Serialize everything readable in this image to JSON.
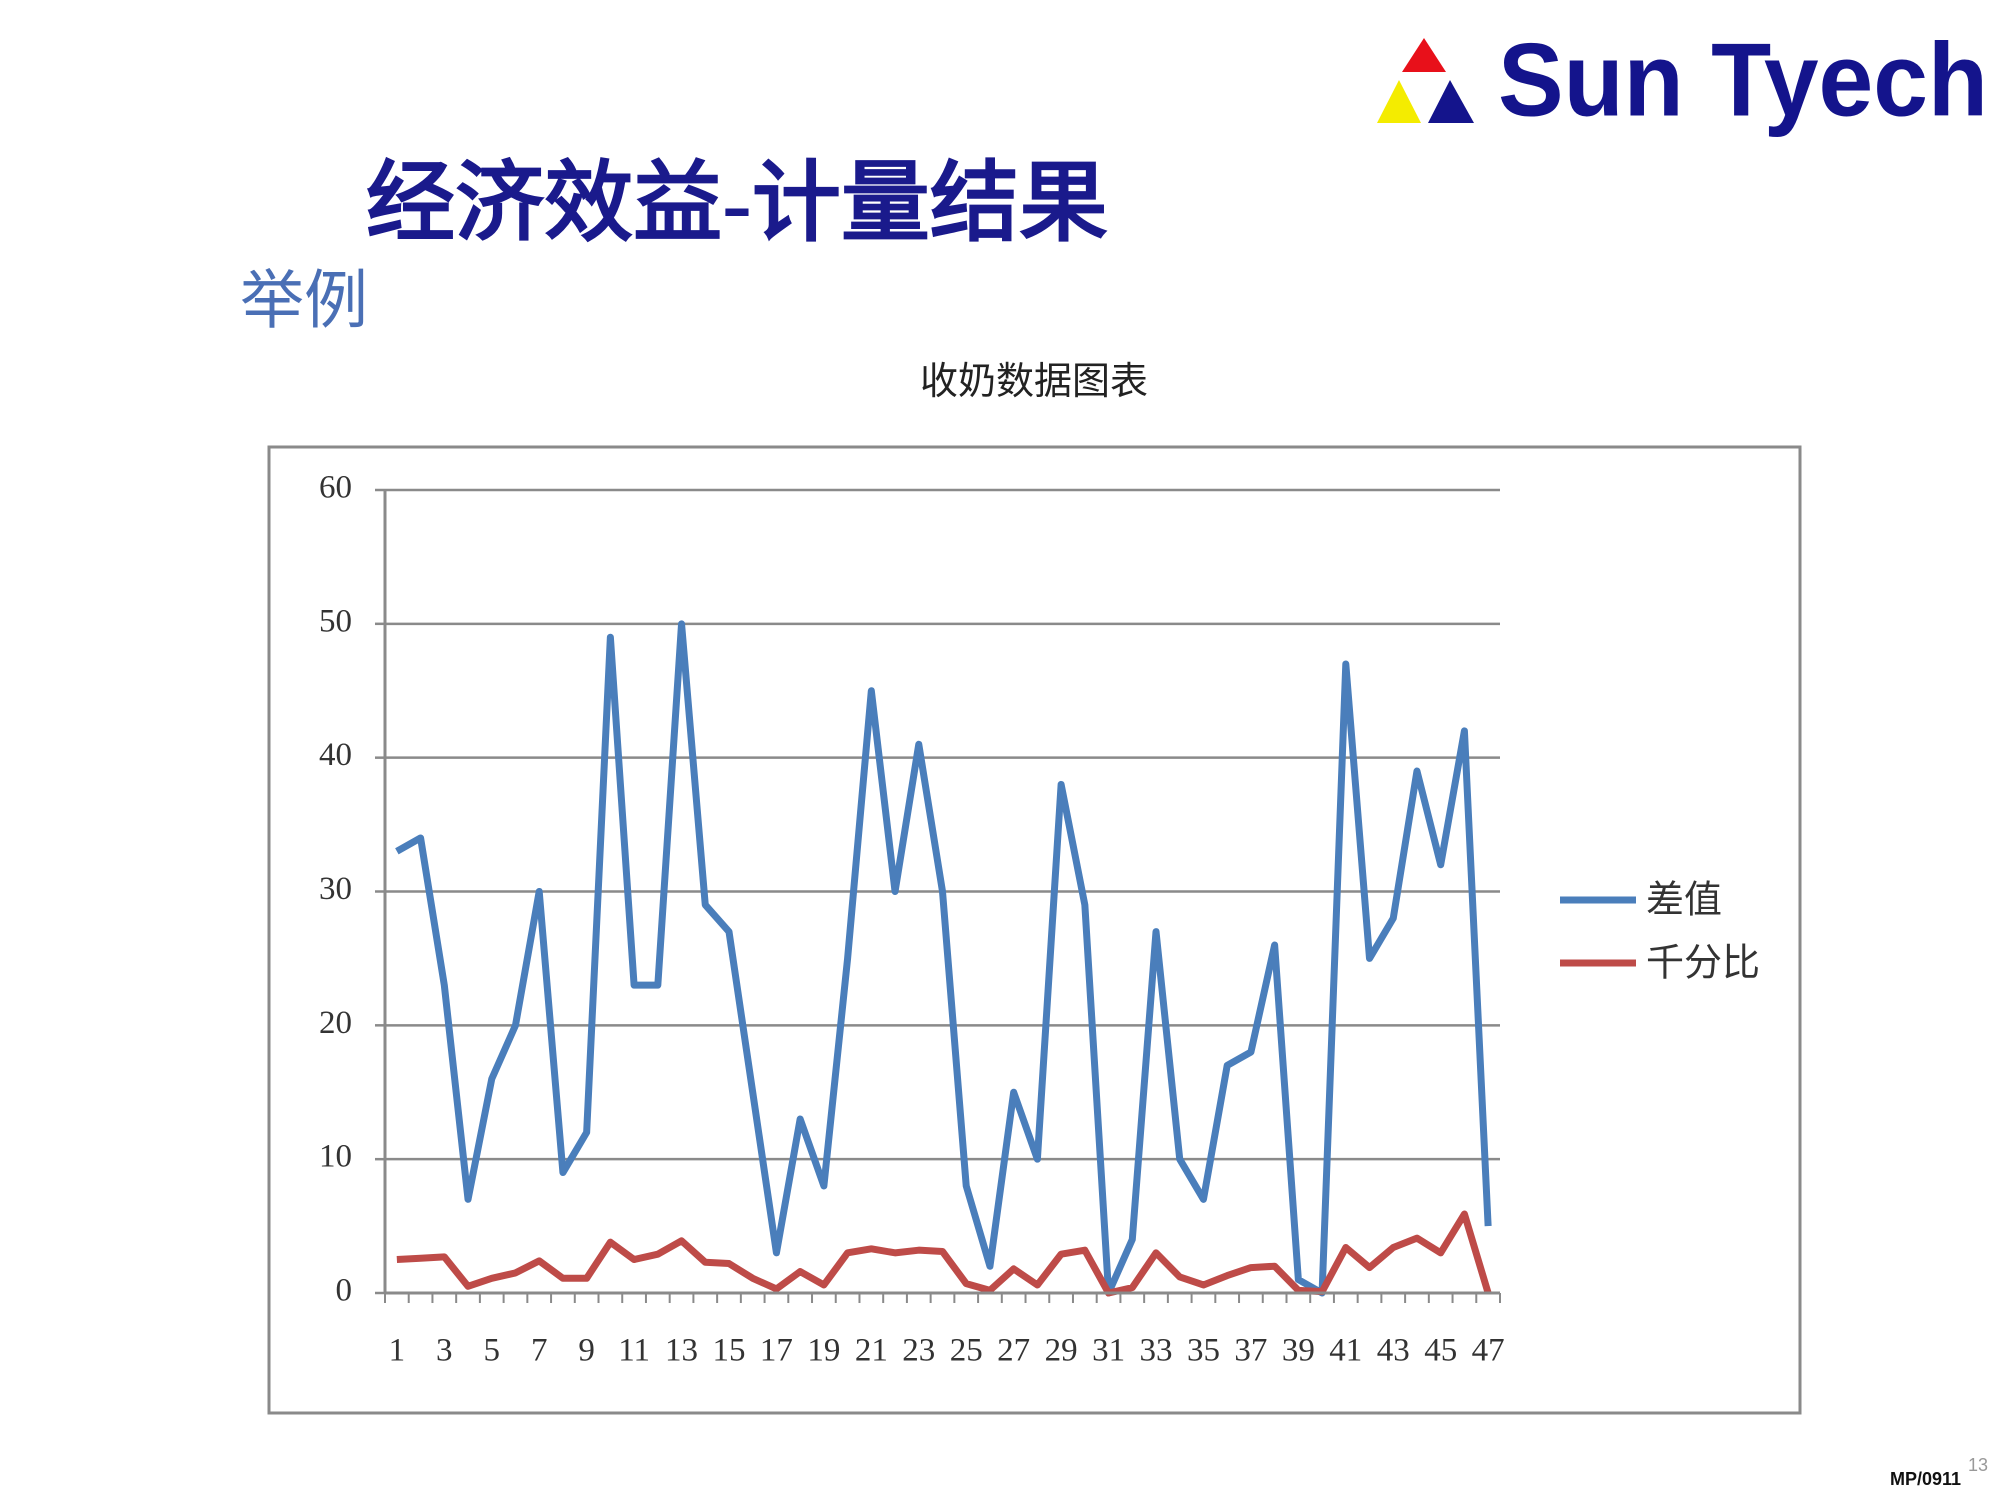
{
  "header": {
    "logo": "Sun Tyech",
    "title": "经济效益-计量结果",
    "subtitle": "举例"
  },
  "footer": {
    "code": "MP/0911",
    "page": "13"
  },
  "chart_data": {
    "type": "line",
    "title": "收奶数据图表",
    "categories": [
      "1",
      null,
      "3",
      null,
      "5",
      null,
      "7",
      null,
      "9",
      null,
      "11",
      null,
      "13",
      null,
      "15",
      null,
      "17",
      null,
      "19",
      null,
      "21",
      null,
      "23",
      null,
      "25",
      null,
      "27",
      null,
      "29",
      null,
      "31",
      null,
      "33",
      null,
      "35",
      null,
      "37",
      null,
      "39",
      null,
      "41",
      null,
      "43",
      null,
      "45",
      null,
      "47"
    ],
    "series": [
      {
        "name": "差值",
        "color": "#4a7ebb",
        "values": [
          33,
          34,
          23,
          7,
          16,
          20,
          30,
          9,
          12,
          49,
          23,
          23,
          50,
          29,
          27,
          15,
          3,
          13,
          8,
          25,
          45,
          30,
          41,
          30,
          8,
          2,
          15,
          10,
          38,
          29,
          0,
          4,
          27,
          10,
          7,
          17,
          18,
          26,
          1,
          0,
          47,
          25,
          28,
          39,
          32,
          42,
          5
        ]
      },
      {
        "name": "千分比",
        "color": "#be4b48",
        "values": [
          2.5,
          2.6,
          2.7,
          0.5,
          1.1,
          1.5,
          2.4,
          1.1,
          1.1,
          3.8,
          2.5,
          2.9,
          3.9,
          2.3,
          2.2,
          1.1,
          0.3,
          1.6,
          0.6,
          3,
          3.3,
          3,
          3.2,
          3.1,
          0.7,
          0.2,
          1.8,
          0.6,
          2.9,
          3.2,
          0,
          0.4,
          3,
          1.2,
          0.6,
          1.3,
          1.9,
          2,
          0.2,
          0.1,
          3.4,
          1.9,
          3.4,
          4.1,
          3,
          5.9,
          0
        ]
      }
    ],
    "ylim": [
      0,
      60
    ],
    "yticks": [
      0,
      10,
      20,
      30,
      40,
      50,
      60
    ],
    "grid": true,
    "legend": "right"
  }
}
